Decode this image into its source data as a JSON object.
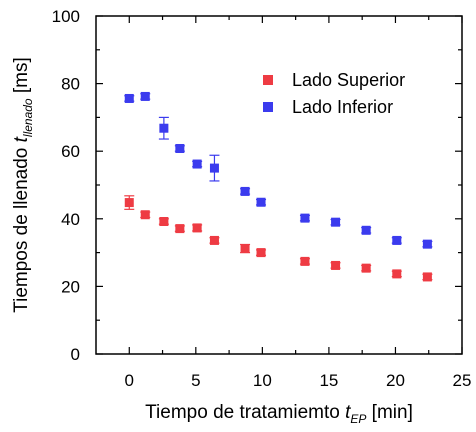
{
  "chart_data": {
    "type": "scatter",
    "title": "",
    "xlabel": {
      "main": "Tiempo de tratamiemto ",
      "var": "t",
      "sub": "EP",
      "unit": " [min]"
    },
    "ylabel": {
      "main": "Tiempos de llenado ",
      "var": "t",
      "sub": "llenado",
      "unit": " [ms]"
    },
    "xlim": [
      -2.5,
      25
    ],
    "ylim": [
      0,
      100
    ],
    "xticks": [
      "0",
      "5",
      "10",
      "15",
      "20",
      "25"
    ],
    "yticks": [
      "0",
      "20",
      "40",
      "60",
      "80",
      "100"
    ],
    "legend_position": "upper-right",
    "grid": false,
    "series": [
      {
        "name": "Lado Superior",
        "color": "#ee3b43",
        "points": [
          {
            "x": 0,
            "y": 44.8,
            "err": 2.0
          },
          {
            "x": 1.2,
            "y": 41.2,
            "err": 0.8
          },
          {
            "x": 2.6,
            "y": 39.2,
            "err": 0.8
          },
          {
            "x": 3.8,
            "y": 37.1,
            "err": 0.8
          },
          {
            "x": 5.1,
            "y": 37.3,
            "err": 0.9
          },
          {
            "x": 6.4,
            "y": 33.6,
            "err": 0.8
          },
          {
            "x": 8.7,
            "y": 31.2,
            "err": 1.2
          },
          {
            "x": 9.9,
            "y": 30.0,
            "err": 0.8
          },
          {
            "x": 13.2,
            "y": 27.4,
            "err": 0.8
          },
          {
            "x": 15.5,
            "y": 26.2,
            "err": 0.8
          },
          {
            "x": 17.8,
            "y": 25.4,
            "err": 0.8
          },
          {
            "x": 20.1,
            "y": 23.7,
            "err": 0.8
          },
          {
            "x": 22.4,
            "y": 22.8,
            "err": 0.8
          }
        ]
      },
      {
        "name": "Lado Inferior",
        "color": "#3b3bee",
        "points": [
          {
            "x": 0,
            "y": 75.6,
            "err": 0.8
          },
          {
            "x": 1.2,
            "y": 76.2,
            "err": 0.8
          },
          {
            "x": 2.6,
            "y": 66.8,
            "err": 3.2
          },
          {
            "x": 3.8,
            "y": 60.8,
            "err": 0.8
          },
          {
            "x": 5.1,
            "y": 56.2,
            "err": 0.8
          },
          {
            "x": 6.4,
            "y": 55.0,
            "err": 3.8
          },
          {
            "x": 8.7,
            "y": 48.1,
            "err": 0.8
          },
          {
            "x": 9.9,
            "y": 44.9,
            "err": 0.8
          },
          {
            "x": 13.2,
            "y": 40.2,
            "err": 0.8
          },
          {
            "x": 15.5,
            "y": 39.0,
            "err": 0.8
          },
          {
            "x": 17.8,
            "y": 36.6,
            "err": 0.8
          },
          {
            "x": 20.1,
            "y": 33.6,
            "err": 0.8
          },
          {
            "x": 22.4,
            "y": 32.5,
            "err": 0.8
          }
        ]
      }
    ]
  }
}
